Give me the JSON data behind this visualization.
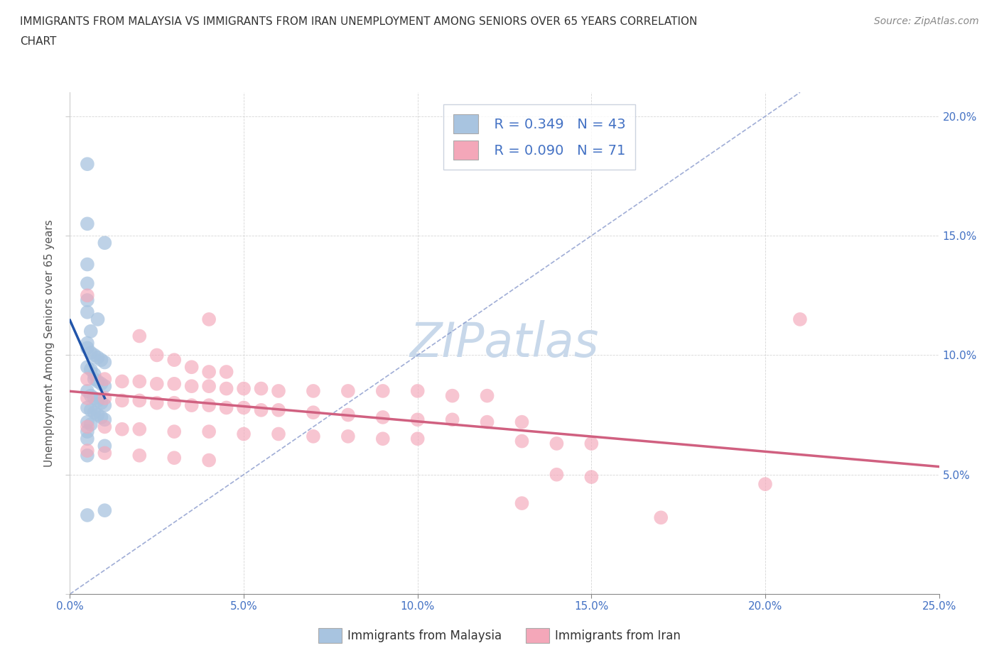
{
  "title": "IMMIGRANTS FROM MALAYSIA VS IMMIGRANTS FROM IRAN UNEMPLOYMENT AMONG SENIORS OVER 65 YEARS CORRELATION\nCHART",
  "source": "Source: ZipAtlas.com",
  "ylabel": "Unemployment Among Seniors over 65 years",
  "xlim": [
    0.0,
    0.25
  ],
  "ylim": [
    0.0,
    0.21
  ],
  "xticks": [
    0.0,
    0.05,
    0.1,
    0.15,
    0.2,
    0.25
  ],
  "yticks": [
    0.0,
    0.05,
    0.1,
    0.15,
    0.2
  ],
  "xticklabels": [
    "0.0%",
    "5.0%",
    "10.0%",
    "15.0%",
    "20.0%",
    "25.0%"
  ],
  "yticklabels_right": [
    "5.0%",
    "10.0%",
    "15.0%",
    "20.0%"
  ],
  "malaysia_color": "#a8c4e0",
  "iran_color": "#f4a7b9",
  "malaysia_line_color": "#2255aa",
  "iran_line_color": "#d06080",
  "diag_line_color": "#8899cc",
  "legend_text_color": "#4472c4",
  "watermark_color": "#c8d8ea",
  "R_malaysia": 0.349,
  "N_malaysia": 43,
  "R_iran": 0.09,
  "N_iran": 71,
  "malaysia_scatter": [
    [
      0.005,
      0.18
    ],
    [
      0.005,
      0.155
    ],
    [
      0.01,
      0.147
    ],
    [
      0.005,
      0.138
    ],
    [
      0.005,
      0.13
    ],
    [
      0.005,
      0.123
    ],
    [
      0.005,
      0.118
    ],
    [
      0.008,
      0.115
    ],
    [
      0.006,
      0.11
    ],
    [
      0.005,
      0.105
    ],
    [
      0.005,
      0.103
    ],
    [
      0.006,
      0.101
    ],
    [
      0.007,
      0.1
    ],
    [
      0.008,
      0.099
    ],
    [
      0.009,
      0.098
    ],
    [
      0.01,
      0.097
    ],
    [
      0.005,
      0.095
    ],
    [
      0.006,
      0.094
    ],
    [
      0.007,
      0.092
    ],
    [
      0.007,
      0.09
    ],
    [
      0.008,
      0.089
    ],
    [
      0.009,
      0.088
    ],
    [
      0.01,
      0.087
    ],
    [
      0.005,
      0.085
    ],
    [
      0.006,
      0.083
    ],
    [
      0.007,
      0.082
    ],
    [
      0.008,
      0.081
    ],
    [
      0.009,
      0.08
    ],
    [
      0.01,
      0.079
    ],
    [
      0.005,
      0.078
    ],
    [
      0.006,
      0.077
    ],
    [
      0.007,
      0.076
    ],
    [
      0.008,
      0.075
    ],
    [
      0.009,
      0.074
    ],
    [
      0.01,
      0.073
    ],
    [
      0.005,
      0.072
    ],
    [
      0.006,
      0.071
    ],
    [
      0.005,
      0.068
    ],
    [
      0.005,
      0.065
    ],
    [
      0.01,
      0.062
    ],
    [
      0.005,
      0.058
    ],
    [
      0.01,
      0.035
    ],
    [
      0.005,
      0.033
    ]
  ],
  "iran_scatter": [
    [
      0.005,
      0.125
    ],
    [
      0.04,
      0.115
    ],
    [
      0.02,
      0.108
    ],
    [
      0.025,
      0.1
    ],
    [
      0.03,
      0.098
    ],
    [
      0.035,
      0.095
    ],
    [
      0.04,
      0.093
    ],
    [
      0.045,
      0.093
    ],
    [
      0.005,
      0.09
    ],
    [
      0.01,
      0.09
    ],
    [
      0.015,
      0.089
    ],
    [
      0.02,
      0.089
    ],
    [
      0.025,
      0.088
    ],
    [
      0.03,
      0.088
    ],
    [
      0.035,
      0.087
    ],
    [
      0.04,
      0.087
    ],
    [
      0.045,
      0.086
    ],
    [
      0.05,
      0.086
    ],
    [
      0.055,
      0.086
    ],
    [
      0.06,
      0.085
    ],
    [
      0.07,
      0.085
    ],
    [
      0.08,
      0.085
    ],
    [
      0.09,
      0.085
    ],
    [
      0.1,
      0.085
    ],
    [
      0.11,
      0.083
    ],
    [
      0.12,
      0.083
    ],
    [
      0.005,
      0.082
    ],
    [
      0.01,
      0.082
    ],
    [
      0.015,
      0.081
    ],
    [
      0.02,
      0.081
    ],
    [
      0.025,
      0.08
    ],
    [
      0.03,
      0.08
    ],
    [
      0.035,
      0.079
    ],
    [
      0.04,
      0.079
    ],
    [
      0.045,
      0.078
    ],
    [
      0.05,
      0.078
    ],
    [
      0.055,
      0.077
    ],
    [
      0.06,
      0.077
    ],
    [
      0.07,
      0.076
    ],
    [
      0.08,
      0.075
    ],
    [
      0.09,
      0.074
    ],
    [
      0.1,
      0.073
    ],
    [
      0.11,
      0.073
    ],
    [
      0.12,
      0.072
    ],
    [
      0.13,
      0.072
    ],
    [
      0.005,
      0.07
    ],
    [
      0.01,
      0.07
    ],
    [
      0.015,
      0.069
    ],
    [
      0.02,
      0.069
    ],
    [
      0.03,
      0.068
    ],
    [
      0.04,
      0.068
    ],
    [
      0.05,
      0.067
    ],
    [
      0.06,
      0.067
    ],
    [
      0.07,
      0.066
    ],
    [
      0.08,
      0.066
    ],
    [
      0.09,
      0.065
    ],
    [
      0.1,
      0.065
    ],
    [
      0.13,
      0.064
    ],
    [
      0.14,
      0.063
    ],
    [
      0.15,
      0.063
    ],
    [
      0.005,
      0.06
    ],
    [
      0.01,
      0.059
    ],
    [
      0.02,
      0.058
    ],
    [
      0.03,
      0.057
    ],
    [
      0.04,
      0.056
    ],
    [
      0.14,
      0.05
    ],
    [
      0.15,
      0.049
    ],
    [
      0.2,
      0.046
    ],
    [
      0.13,
      0.038
    ],
    [
      0.17,
      0.032
    ],
    [
      0.21,
      0.115
    ]
  ]
}
